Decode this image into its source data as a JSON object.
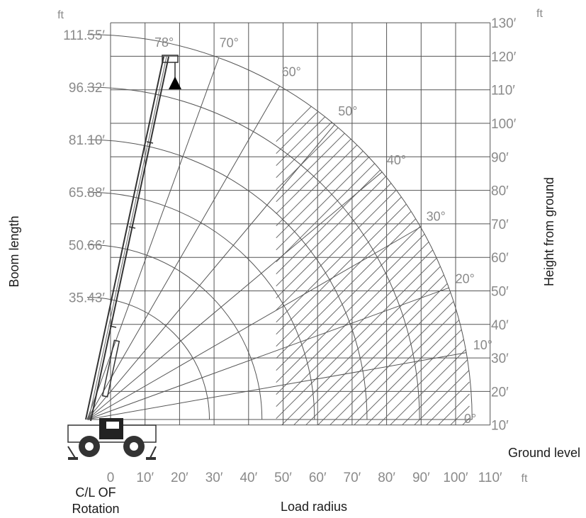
{
  "chart_data": {
    "type": "range-chart",
    "x_axis": {
      "title": "Load radius",
      "unit": "ft",
      "origin_label_line1": "C/L OF",
      "origin_label_line2": "Rotation",
      "ticks": [
        {
          "value": 0,
          "label": "0"
        },
        {
          "value": 10,
          "label": "10′"
        },
        {
          "value": 20,
          "label": "20′"
        },
        {
          "value": 30,
          "label": "30′"
        },
        {
          "value": 40,
          "label": "40′"
        },
        {
          "value": 50,
          "label": "50′"
        },
        {
          "value": 60,
          "label": "60′"
        },
        {
          "value": 70,
          "label": "70′"
        },
        {
          "value": 80,
          "label": "80′"
        },
        {
          "value": 90,
          "label": "90′"
        },
        {
          "value": 100,
          "label": "100′"
        },
        {
          "value": 110,
          "label": "110′"
        }
      ]
    },
    "y_axis_right": {
      "title": "Height from ground",
      "unit": "ft",
      "ground_label": "Ground level",
      "ticks": [
        {
          "value": 10,
          "label": "10′"
        },
        {
          "value": 20,
          "label": "20′"
        },
        {
          "value": 30,
          "label": "30′"
        },
        {
          "value": 40,
          "label": "40′"
        },
        {
          "value": 50,
          "label": "50′"
        },
        {
          "value": 60,
          "label": "60′"
        },
        {
          "value": 70,
          "label": "70′"
        },
        {
          "value": 80,
          "label": "80′"
        },
        {
          "value": 90,
          "label": "90′"
        },
        {
          "value": 100,
          "label": "100′"
        },
        {
          "value": 110,
          "label": "110′"
        },
        {
          "value": 120,
          "label": "120′"
        },
        {
          "value": 130,
          "label": "130′"
        }
      ]
    },
    "boom_lengths": {
      "title": "Boom length",
      "unit": "ft",
      "values": [
        {
          "value": 35.43,
          "label": "35.43′"
        },
        {
          "value": 50.66,
          "label": "50.66′"
        },
        {
          "value": 65.88,
          "label": "65.88′"
        },
        {
          "value": 81.1,
          "label": "81.10′"
        },
        {
          "value": 96.32,
          "label": "96.32′"
        },
        {
          "value": 111.55,
          "label": "111.55′"
        }
      ]
    },
    "boom_angles": [
      {
        "value": 0,
        "label": "0°"
      },
      {
        "value": 10,
        "label": "10°"
      },
      {
        "value": 20,
        "label": "20°"
      },
      {
        "value": 30,
        "label": "30°"
      },
      {
        "value": 40,
        "label": "40°"
      },
      {
        "value": 50,
        "label": "50°"
      },
      {
        "value": 60,
        "label": "60°"
      },
      {
        "value": 70,
        "label": "70°"
      },
      {
        "value": 78,
        "label": "78°"
      }
    ],
    "hatched_region": {
      "x_from": 48,
      "x_to": 104
    }
  }
}
